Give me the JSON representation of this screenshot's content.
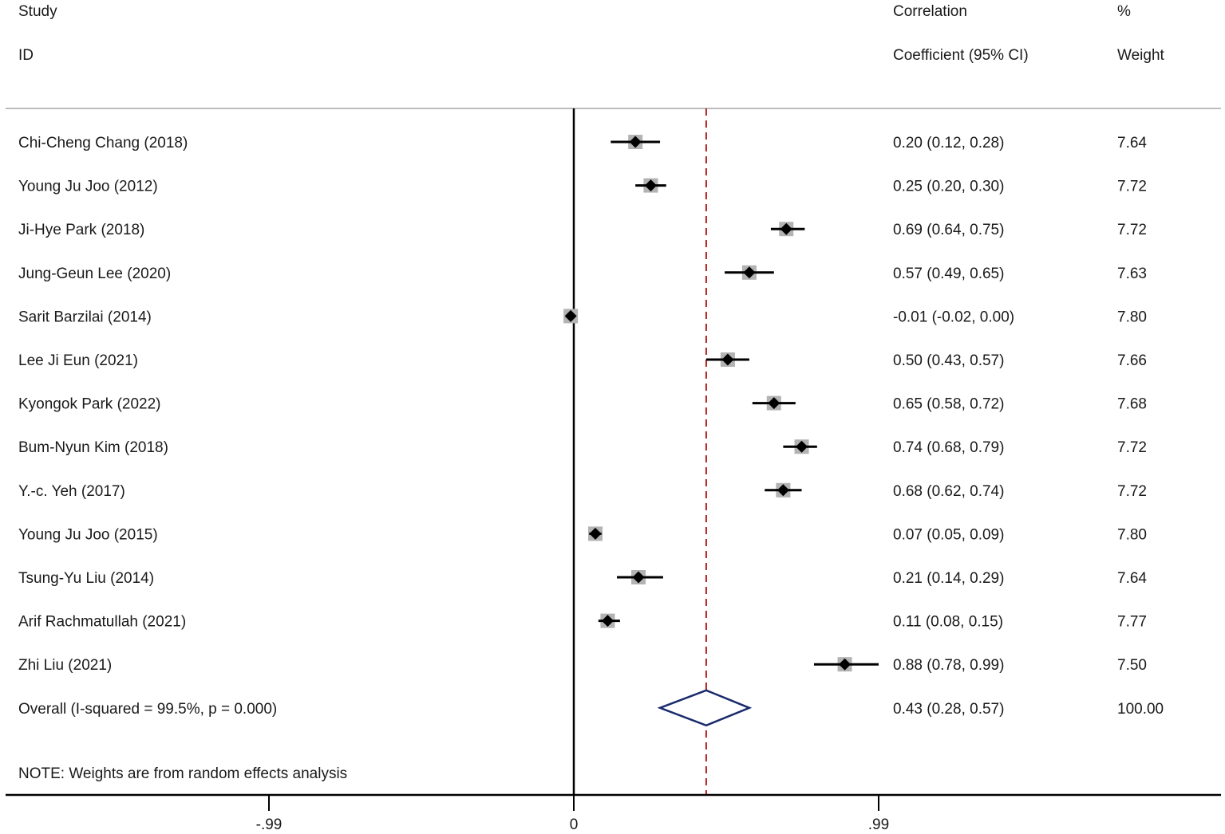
{
  "header": {
    "study_line1": "Study",
    "study_line2": "ID",
    "coef_line1": "Correlation",
    "coef_line2": "Coefficient (95% CI)",
    "weight_line1": "%",
    "weight_line2": "Weight"
  },
  "note": "NOTE: Weights are from random effects analysis",
  "chart_data": {
    "type": "forest",
    "xlim": [
      -1.0,
      2.13
    ],
    "x_ticks": [
      {
        "value": -0.99,
        "label": "-.99"
      },
      {
        "value": 0,
        "label": "0"
      },
      {
        "value": 0.99,
        "label": ".99"
      }
    ],
    "null_line": 0,
    "pooled_estimate_line": 0.43,
    "studies": [
      {
        "study": "Chi-Cheng Chang (2018)",
        "estimate": 0.2,
        "lower": 0.12,
        "upper": 0.28,
        "ci_label": "0.20 (0.12, 0.28)",
        "weight": "7.64"
      },
      {
        "study": "Young Ju Joo (2012)",
        "estimate": 0.25,
        "lower": 0.2,
        "upper": 0.3,
        "ci_label": "0.25 (0.20, 0.30)",
        "weight": "7.72"
      },
      {
        "study": "Ji-Hye Park (2018)",
        "estimate": 0.69,
        "lower": 0.64,
        "upper": 0.75,
        "ci_label": "0.69 (0.64, 0.75)",
        "weight": "7.72"
      },
      {
        "study": "Jung-Geun Lee (2020)",
        "estimate": 0.57,
        "lower": 0.49,
        "upper": 0.65,
        "ci_label": "0.57 (0.49, 0.65)",
        "weight": "7.63"
      },
      {
        "study": "Sarit Barzilai (2014)",
        "estimate": -0.01,
        "lower": -0.02,
        "upper": 0.0,
        "ci_label": "-0.01 (-0.02, 0.00)",
        "weight": "7.80"
      },
      {
        "study": "Lee Ji Eun (2021)",
        "estimate": 0.5,
        "lower": 0.43,
        "upper": 0.57,
        "ci_label": "0.50 (0.43, 0.57)",
        "weight": "7.66"
      },
      {
        "study": "Kyongok Park (2022)",
        "estimate": 0.65,
        "lower": 0.58,
        "upper": 0.72,
        "ci_label": "0.65 (0.58, 0.72)",
        "weight": "7.68"
      },
      {
        "study": "Bum-Nyun Kim (2018)",
        "estimate": 0.74,
        "lower": 0.68,
        "upper": 0.79,
        "ci_label": "0.74 (0.68, 0.79)",
        "weight": "7.72"
      },
      {
        "study": "Y.-c. Yeh (2017)",
        "estimate": 0.68,
        "lower": 0.62,
        "upper": 0.74,
        "ci_label": "0.68 (0.62, 0.74)",
        "weight": "7.72"
      },
      {
        "study": "Young Ju Joo (2015)",
        "estimate": 0.07,
        "lower": 0.05,
        "upper": 0.09,
        "ci_label": "0.07 (0.05, 0.09)",
        "weight": "7.80"
      },
      {
        "study": "Tsung-Yu Liu (2014)",
        "estimate": 0.21,
        "lower": 0.14,
        "upper": 0.29,
        "ci_label": "0.21 (0.14, 0.29)",
        "weight": "7.64"
      },
      {
        "study": "Arif Rachmatullah (2021)",
        "estimate": 0.11,
        "lower": 0.08,
        "upper": 0.15,
        "ci_label": "0.11 (0.08, 0.15)",
        "weight": "7.77"
      },
      {
        "study": "Zhi Liu (2021)",
        "estimate": 0.88,
        "lower": 0.78,
        "upper": 0.99,
        "ci_label": "0.88 (0.78, 0.99)",
        "weight": "7.50"
      }
    ],
    "overall": {
      "label": "Overall  (I-squared = 99.5%, p = 0.000)",
      "estimate": 0.43,
      "lower": 0.28,
      "upper": 0.57,
      "ci_label": "0.43 (0.28, 0.57)",
      "weight": "100.00"
    },
    "colors": {
      "marker": "#000000",
      "weight_box": "#b3b3b3",
      "pooled_line": "#b22222",
      "diamond": "#1a2a6c",
      "axis": "#000000",
      "separator": "#a6a6a6"
    }
  }
}
